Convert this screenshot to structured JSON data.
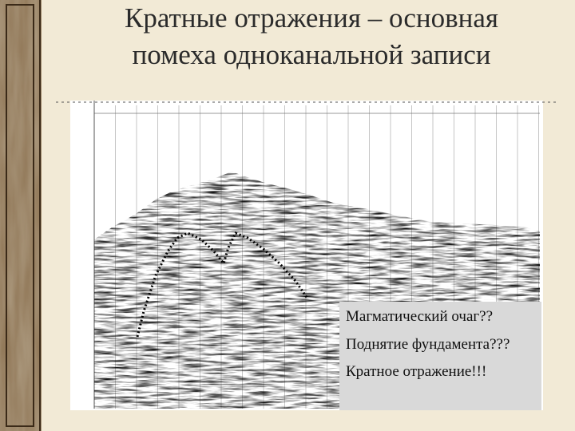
{
  "title": {
    "lines": [
      "Кратные  отражения – основная",
      "помеха одноканальной записи"
    ]
  },
  "note": {
    "lines": [
      "Магматический очаг??",
      "Поднятие фундамента???",
      "Кратное отражение!!!"
    ]
  }
}
